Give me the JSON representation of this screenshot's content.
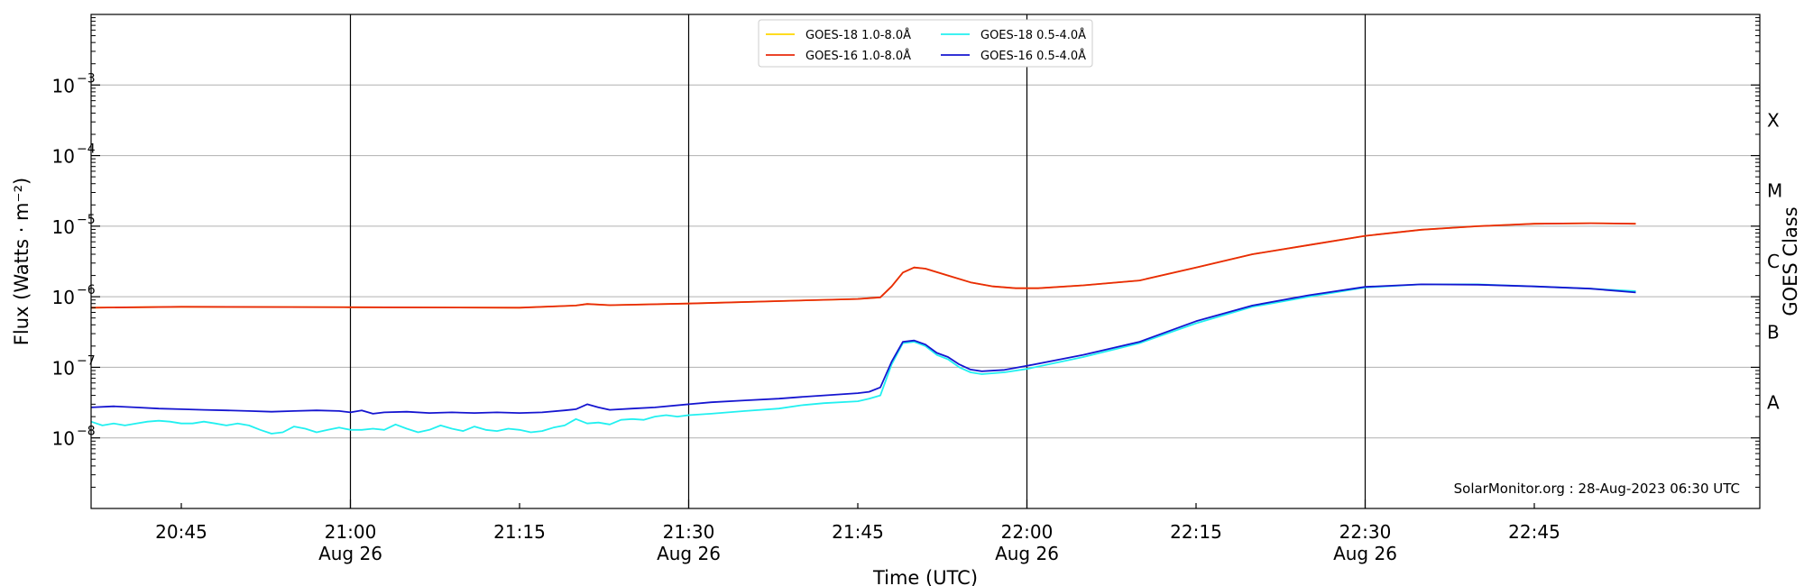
{
  "chart_data": {
    "type": "line",
    "xlabel": "Time (UTC)",
    "ylabel": "Flux (Watts · m⁻²)",
    "right_label": "GOES Class",
    "credit": "SolarMonitor.org : 28-Aug-2023 06:30 UTC",
    "x_range": [
      "20:37",
      "23:05"
    ],
    "ylim": [
      1e-09,
      0.01
    ],
    "yscale": "log",
    "grid": "horizontal at each decade 1e-8 to 1e-3",
    "legend_location": "top-center",
    "x_major_ticks": [
      {
        "time": "21:00",
        "top": "21:00",
        "bottom": "Aug 26"
      },
      {
        "time": "21:30",
        "top": "21:30",
        "bottom": "Aug 26"
      },
      {
        "time": "22:00",
        "top": "22:00",
        "bottom": "Aug 26"
      },
      {
        "time": "22:30",
        "top": "22:30",
        "bottom": "Aug 26"
      }
    ],
    "x_minor_ticks": [
      {
        "time": "20:45",
        "label": "20:45"
      },
      {
        "time": "21:15",
        "label": "21:15"
      },
      {
        "time": "21:45",
        "label": "21:45"
      },
      {
        "time": "22:15",
        "label": "22:15"
      },
      {
        "time": "22:45",
        "label": "22:45"
      }
    ],
    "y_ticks": [
      {
        "exp": -8,
        "label": "10",
        "sup": "−8"
      },
      {
        "exp": -7,
        "label": "10",
        "sup": "−7"
      },
      {
        "exp": -6,
        "label": "10",
        "sup": "−6"
      },
      {
        "exp": -5,
        "label": "10",
        "sup": "−5"
      },
      {
        "exp": -4,
        "label": "10",
        "sup": "−4"
      },
      {
        "exp": -3,
        "label": "10",
        "sup": "−3"
      }
    ],
    "goes_classes": [
      {
        "label": "A",
        "exp": -7.5
      },
      {
        "label": "B",
        "exp": -6.5
      },
      {
        "label": "C",
        "exp": -5.5
      },
      {
        "label": "M",
        "exp": -4.5
      },
      {
        "label": "X",
        "exp": -3.5
      }
    ],
    "series": [
      {
        "name": "GOES-18 1.0-8.0Å",
        "color": "#ffd700",
        "legend_order": 1,
        "points": [
          [
            "20:37",
            7e-07
          ],
          [
            "20:45",
            7.2e-07
          ],
          [
            "21:00",
            7.1e-07
          ],
          [
            "21:15",
            7e-07
          ],
          [
            "21:20",
            7.5e-07
          ],
          [
            "21:21",
            7.9e-07
          ],
          [
            "21:23",
            7.6e-07
          ],
          [
            "21:30",
            8e-07
          ],
          [
            "21:45",
            9.3e-07
          ],
          [
            "21:47",
            9.8e-07
          ],
          [
            "21:48",
            1.4e-06
          ],
          [
            "21:49",
            2.2e-06
          ],
          [
            "21:50",
            2.6e-06
          ],
          [
            "21:51",
            2.5e-06
          ],
          [
            "21:53",
            2e-06
          ],
          [
            "21:55",
            1.6e-06
          ],
          [
            "21:57",
            1.4e-06
          ],
          [
            "21:59",
            1.32e-06
          ],
          [
            "22:01",
            1.32e-06
          ],
          [
            "22:05",
            1.45e-06
          ],
          [
            "22:10",
            1.7e-06
          ],
          [
            "22:15",
            2.6e-06
          ],
          [
            "22:20",
            4e-06
          ],
          [
            "22:25",
            5.4e-06
          ],
          [
            "22:30",
            7.3e-06
          ],
          [
            "22:35",
            8.9e-06
          ],
          [
            "22:40",
            1e-05
          ],
          [
            "22:45",
            1.08e-05
          ],
          [
            "22:50",
            1.1e-05
          ],
          [
            "22:54",
            1.08e-05
          ]
        ]
      },
      {
        "name": "GOES-16 1.0-8.0Å",
        "color": "#e8290b",
        "legend_order": 2,
        "points": [
          [
            "20:37",
            7e-07
          ],
          [
            "20:45",
            7.2e-07
          ],
          [
            "21:00",
            7.1e-07
          ],
          [
            "21:15",
            7e-07
          ],
          [
            "21:20",
            7.5e-07
          ],
          [
            "21:21",
            7.9e-07
          ],
          [
            "21:23",
            7.6e-07
          ],
          [
            "21:30",
            8e-07
          ],
          [
            "21:45",
            9.3e-07
          ],
          [
            "21:47",
            9.8e-07
          ],
          [
            "21:48",
            1.4e-06
          ],
          [
            "21:49",
            2.2e-06
          ],
          [
            "21:50",
            2.6e-06
          ],
          [
            "21:51",
            2.5e-06
          ],
          [
            "21:53",
            2e-06
          ],
          [
            "21:55",
            1.6e-06
          ],
          [
            "21:57",
            1.4e-06
          ],
          [
            "21:59",
            1.32e-06
          ],
          [
            "22:01",
            1.32e-06
          ],
          [
            "22:05",
            1.45e-06
          ],
          [
            "22:10",
            1.7e-06
          ],
          [
            "22:15",
            2.6e-06
          ],
          [
            "22:20",
            4e-06
          ],
          [
            "22:25",
            5.4e-06
          ],
          [
            "22:30",
            7.3e-06
          ],
          [
            "22:35",
            8.9e-06
          ],
          [
            "22:40",
            1e-05
          ],
          [
            "22:45",
            1.08e-05
          ],
          [
            "22:50",
            1.1e-05
          ],
          [
            "22:54",
            1.08e-05
          ]
        ]
      },
      {
        "name": "GOES-18 0.5-4.0Å",
        "color": "#22f0f0",
        "legend_order": 3,
        "points": [
          [
            "20:37",
            1.7e-08
          ],
          [
            "20:38",
            1.5e-08
          ],
          [
            "20:39",
            1.6e-08
          ],
          [
            "20:40",
            1.5e-08
          ],
          [
            "20:41",
            1.6e-08
          ],
          [
            "20:42",
            1.7e-08
          ],
          [
            "20:43",
            1.75e-08
          ],
          [
            "20:44",
            1.7e-08
          ],
          [
            "20:45",
            1.6e-08
          ],
          [
            "20:46",
            1.6e-08
          ],
          [
            "20:47",
            1.7e-08
          ],
          [
            "20:48",
            1.6e-08
          ],
          [
            "20:49",
            1.5e-08
          ],
          [
            "20:50",
            1.6e-08
          ],
          [
            "20:51",
            1.5e-08
          ],
          [
            "20:52",
            1.3e-08
          ],
          [
            "20:53",
            1.15e-08
          ],
          [
            "20:54",
            1.2e-08
          ],
          [
            "20:55",
            1.45e-08
          ],
          [
            "20:56",
            1.35e-08
          ],
          [
            "20:57",
            1.2e-08
          ],
          [
            "20:58",
            1.3e-08
          ],
          [
            "20:59",
            1.4e-08
          ],
          [
            "21:00",
            1.3e-08
          ],
          [
            "21:01",
            1.3e-08
          ],
          [
            "21:02",
            1.35e-08
          ],
          [
            "21:03",
            1.3e-08
          ],
          [
            "21:04",
            1.55e-08
          ],
          [
            "21:05",
            1.35e-08
          ],
          [
            "21:06",
            1.2e-08
          ],
          [
            "21:07",
            1.3e-08
          ],
          [
            "21:08",
            1.5e-08
          ],
          [
            "21:09",
            1.35e-08
          ],
          [
            "21:10",
            1.25e-08
          ],
          [
            "21:11",
            1.45e-08
          ],
          [
            "21:12",
            1.3e-08
          ],
          [
            "21:13",
            1.25e-08
          ],
          [
            "21:14",
            1.35e-08
          ],
          [
            "21:15",
            1.3e-08
          ],
          [
            "21:16",
            1.2e-08
          ],
          [
            "21:17",
            1.25e-08
          ],
          [
            "21:18",
            1.4e-08
          ],
          [
            "21:19",
            1.5e-08
          ],
          [
            "21:20",
            1.85e-08
          ],
          [
            "21:21",
            1.6e-08
          ],
          [
            "21:22",
            1.65e-08
          ],
          [
            "21:23",
            1.55e-08
          ],
          [
            "21:24",
            1.8e-08
          ],
          [
            "21:25",
            1.85e-08
          ],
          [
            "21:26",
            1.8e-08
          ],
          [
            "21:27",
            2e-08
          ],
          [
            "21:28",
            2.1e-08
          ],
          [
            "21:29",
            2e-08
          ],
          [
            "21:30",
            2.1e-08
          ],
          [
            "21:32",
            2.2e-08
          ],
          [
            "21:35",
            2.4e-08
          ],
          [
            "21:38",
            2.6e-08
          ],
          [
            "21:40",
            2.9e-08
          ],
          [
            "21:42",
            3.1e-08
          ],
          [
            "21:45",
            3.3e-08
          ],
          [
            "21:46",
            3.6e-08
          ],
          [
            "21:47",
            4e-08
          ],
          [
            "21:48",
            1.1e-07
          ],
          [
            "21:49",
            2.2e-07
          ],
          [
            "21:50",
            2.3e-07
          ],
          [
            "21:51",
            2e-07
          ],
          [
            "21:52",
            1.5e-07
          ],
          [
            "21:53",
            1.3e-07
          ],
          [
            "21:54",
            1e-07
          ],
          [
            "21:55",
            8.5e-08
          ],
          [
            "21:56",
            8e-08
          ],
          [
            "21:58",
            8.5e-08
          ],
          [
            "22:00",
            9.5e-08
          ],
          [
            "22:05",
            1.4e-07
          ],
          [
            "22:10",
            2.2e-07
          ],
          [
            "22:15",
            4.2e-07
          ],
          [
            "22:20",
            7.2e-07
          ],
          [
            "22:25",
            1e-06
          ],
          [
            "22:30",
            1.35e-06
          ],
          [
            "22:35",
            1.5e-06
          ],
          [
            "22:40",
            1.5e-06
          ],
          [
            "22:45",
            1.4e-06
          ],
          [
            "22:50",
            1.3e-06
          ],
          [
            "22:54",
            1.2e-06
          ]
        ]
      },
      {
        "name": "GOES-16 0.5-4.0Å",
        "color": "#1515d0",
        "legend_order": 4,
        "points": [
          [
            "20:37",
            2.7e-08
          ],
          [
            "20:39",
            2.8e-08
          ],
          [
            "20:41",
            2.7e-08
          ],
          [
            "20:43",
            2.6e-08
          ],
          [
            "20:45",
            2.55e-08
          ],
          [
            "20:47",
            2.5e-08
          ],
          [
            "20:49",
            2.45e-08
          ],
          [
            "20:51",
            2.4e-08
          ],
          [
            "20:53",
            2.35e-08
          ],
          [
            "20:55",
            2.4e-08
          ],
          [
            "20:57",
            2.45e-08
          ],
          [
            "20:59",
            2.4e-08
          ],
          [
            "21:00",
            2.3e-08
          ],
          [
            "21:01",
            2.45e-08
          ],
          [
            "21:02",
            2.2e-08
          ],
          [
            "21:03",
            2.3e-08
          ],
          [
            "21:05",
            2.35e-08
          ],
          [
            "21:07",
            2.25e-08
          ],
          [
            "21:09",
            2.3e-08
          ],
          [
            "21:11",
            2.25e-08
          ],
          [
            "21:13",
            2.3e-08
          ],
          [
            "21:15",
            2.25e-08
          ],
          [
            "21:17",
            2.3e-08
          ],
          [
            "21:19",
            2.45e-08
          ],
          [
            "21:20",
            2.55e-08
          ],
          [
            "21:21",
            3e-08
          ],
          [
            "21:22",
            2.7e-08
          ],
          [
            "21:23",
            2.5e-08
          ],
          [
            "21:25",
            2.6e-08
          ],
          [
            "21:27",
            2.7e-08
          ],
          [
            "21:30",
            3e-08
          ],
          [
            "21:32",
            3.2e-08
          ],
          [
            "21:35",
            3.4e-08
          ],
          [
            "21:38",
            3.6e-08
          ],
          [
            "21:40",
            3.8e-08
          ],
          [
            "21:42",
            4e-08
          ],
          [
            "21:45",
            4.3e-08
          ],
          [
            "21:46",
            4.5e-08
          ],
          [
            "21:47",
            5.2e-08
          ],
          [
            "21:48",
            1.2e-07
          ],
          [
            "21:49",
            2.3e-07
          ],
          [
            "21:50",
            2.4e-07
          ],
          [
            "21:51",
            2.1e-07
          ],
          [
            "21:52",
            1.6e-07
          ],
          [
            "21:53",
            1.4e-07
          ],
          [
            "21:54",
            1.1e-07
          ],
          [
            "21:55",
            9.3e-08
          ],
          [
            "21:56",
            8.8e-08
          ],
          [
            "21:58",
            9.2e-08
          ],
          [
            "22:00",
            1.05e-07
          ],
          [
            "22:05",
            1.5e-07
          ],
          [
            "22:10",
            2.3e-07
          ],
          [
            "22:15",
            4.5e-07
          ],
          [
            "22:20",
            7.5e-07
          ],
          [
            "22:25",
            1.05e-06
          ],
          [
            "22:30",
            1.38e-06
          ],
          [
            "22:35",
            1.5e-06
          ],
          [
            "22:40",
            1.48e-06
          ],
          [
            "22:45",
            1.4e-06
          ],
          [
            "22:50",
            1.3e-06
          ],
          [
            "22:54",
            1.15e-06
          ]
        ]
      }
    ]
  }
}
